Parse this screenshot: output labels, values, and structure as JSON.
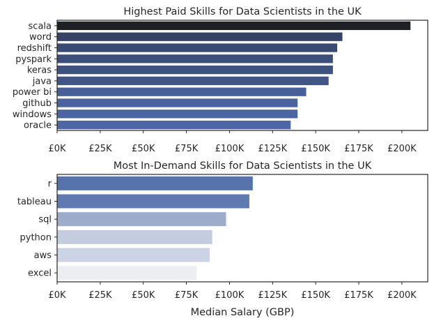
{
  "chart_data": [
    {
      "type": "bar",
      "orientation": "horizontal",
      "title": "Highest Paid Skills for Data Scientists in the UK",
      "xlabel": "",
      "ylabel": "",
      "xlim": [
        0,
        215000
      ],
      "x_ticks": [
        0,
        25000,
        50000,
        75000,
        100000,
        125000,
        150000,
        175000,
        200000
      ],
      "x_tick_labels": [
        "£0K",
        "£25K",
        "£50K",
        "£75K",
        "£100K",
        "£125K",
        "£150K",
        "£175K",
        "£200K"
      ],
      "categories": [
        "scala",
        "word",
        "redshift",
        "pyspark",
        "keras",
        "java",
        "power bi",
        "github",
        "windows",
        "oracle"
      ],
      "values": [
        205000,
        165500,
        162500,
        160000,
        160000,
        157500,
        144500,
        139500,
        139500,
        135500
      ],
      "colors": [
        "#1f2026",
        "#344366",
        "#394a73",
        "#3c4f7b",
        "#3e527f",
        "#415685",
        "#48609a",
        "#4a63a0",
        "#4b64a2",
        "#4d67a6"
      ],
      "grid": false,
      "legend": "none"
    },
    {
      "type": "bar",
      "orientation": "horizontal",
      "title": "Most In-Demand Skills for Data Scientists in the UK",
      "xlabel": "Median Salary (GBP)",
      "ylabel": "",
      "xlim": [
        0,
        215000
      ],
      "x_ticks": [
        0,
        25000,
        50000,
        75000,
        100000,
        125000,
        150000,
        175000,
        200000
      ],
      "x_tick_labels": [
        "£0K",
        "£25K",
        "£50K",
        "£75K",
        "£100K",
        "£125K",
        "£150K",
        "£175K",
        "£200K"
      ],
      "categories": [
        "r",
        "tableau",
        "sql",
        "python",
        "aws",
        "excel"
      ],
      "values": [
        113500,
        111500,
        98000,
        90000,
        88500,
        81000
      ],
      "colors": [
        "#5773ab",
        "#5f7ab0",
        "#9cacca",
        "#c4cce0",
        "#ccd3e4",
        "#eceef1"
      ],
      "grid": false,
      "legend": "none"
    }
  ]
}
